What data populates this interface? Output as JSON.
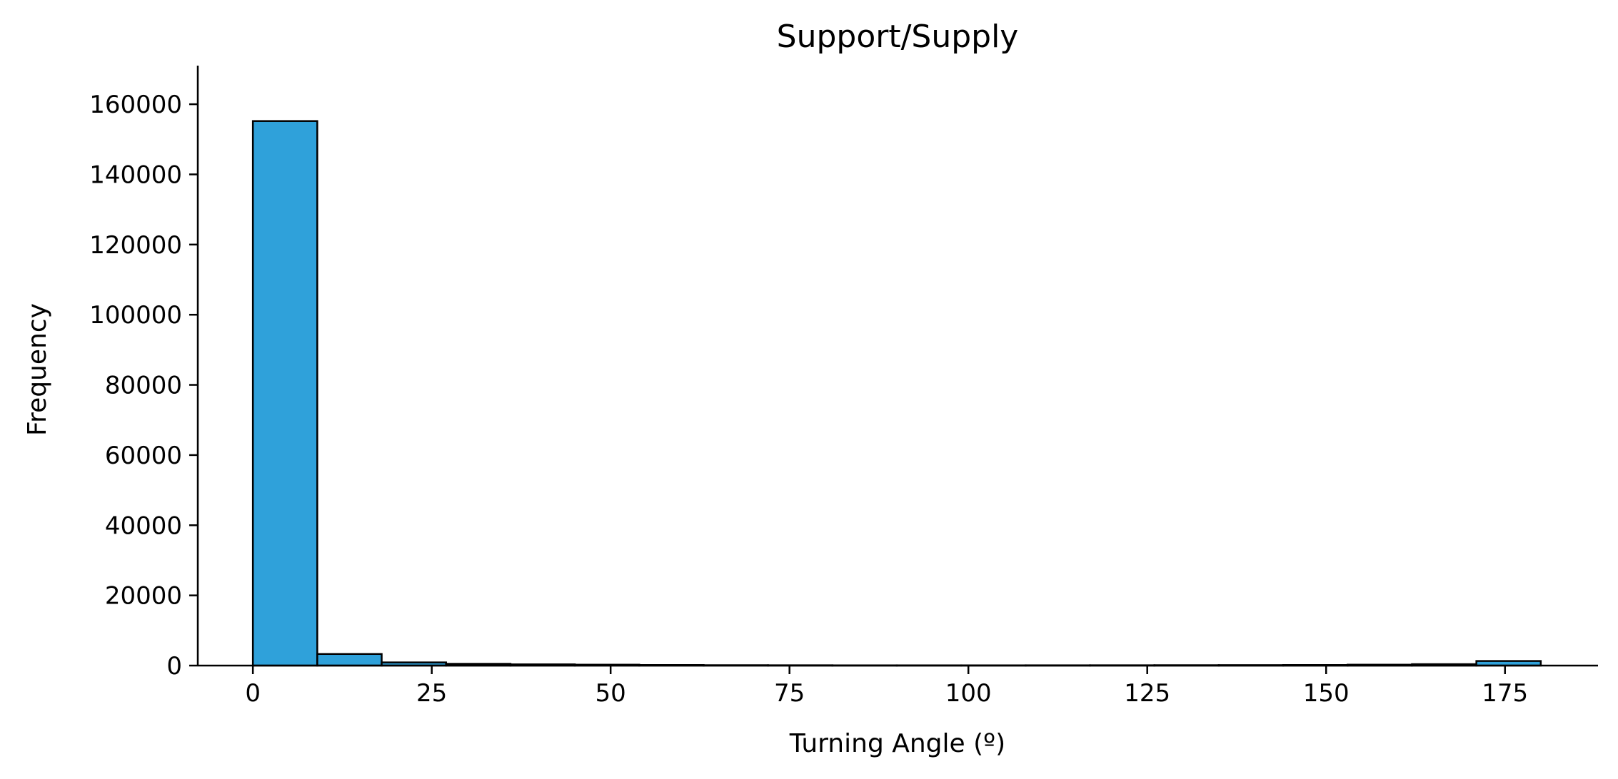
{
  "chart_data": {
    "type": "bar",
    "title": "Support/Supply",
    "xlabel": "Turning Angle (º)",
    "ylabel": "Frequency",
    "xlim": [
      -7.7,
      188
    ],
    "ylim": [
      0,
      171000
    ],
    "xticks": [
      0,
      25,
      50,
      75,
      100,
      125,
      150,
      175
    ],
    "yticks": [
      0,
      20000,
      40000,
      60000,
      80000,
      100000,
      120000,
      140000,
      160000
    ],
    "bin_edges": [
      0,
      9,
      18,
      27,
      36,
      45,
      54,
      63,
      72,
      81,
      90,
      99,
      108,
      117,
      126,
      135,
      144,
      153,
      162,
      171,
      180
    ],
    "values": [
      155200,
      3300,
      900,
      500,
      350,
      250,
      150,
      100,
      80,
      60,
      60,
      60,
      70,
      80,
      100,
      120,
      150,
      250,
      400,
      1300
    ],
    "bar_color": "#2fa1da",
    "edge_color": "#000000",
    "grid": false,
    "legend": "none"
  }
}
